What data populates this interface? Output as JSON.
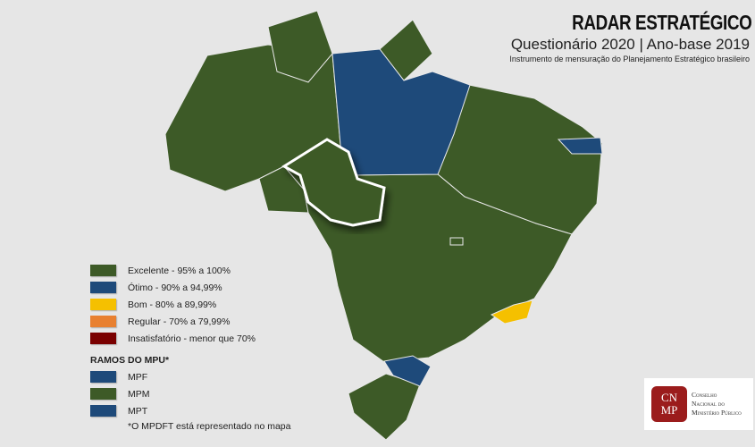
{
  "header": {
    "title": "RADAR ESTRATÉGICO",
    "subtitle": "Questionário 2020 | Ano-base 2019",
    "description": "Instrumento de mensuração do Planejamento Estratégico brasileiro"
  },
  "legend": {
    "levels": [
      {
        "label": "Excelente - 95% a 100%",
        "color": "#3d5a27"
      },
      {
        "label": "Ótimo - 90% a 94,99%",
        "color": "#1e4a7a"
      },
      {
        "label": "Bom - 80% a 89,99%",
        "color": "#f5c000"
      },
      {
        "label": "Regular - 70% a 79,99%",
        "color": "#e88030"
      },
      {
        "label": "Insatisfatório - menor que 70%",
        "color": "#7a0000"
      }
    ],
    "ramos_title": "RAMOS DO MPU*",
    "ramos": [
      {
        "label": "MPF",
        "color": "#1e4a7a"
      },
      {
        "label": "MPM",
        "color": "#3d5a27"
      },
      {
        "label": "MPT",
        "color": "#1e4a7a"
      }
    ],
    "note": "*O MPDFT está representado no mapa"
  },
  "logo": {
    "mark": "CNMP",
    "text": [
      "Conselho",
      "Nacional do",
      "Ministério Público"
    ]
  },
  "map": {
    "states_blue": [
      "Pará",
      "Paraíba",
      "Santa Catarina"
    ],
    "states_yellow": [
      "Rio de Janeiro"
    ],
    "highlighted": "Rondônia",
    "default_color": "#3d5a27"
  }
}
